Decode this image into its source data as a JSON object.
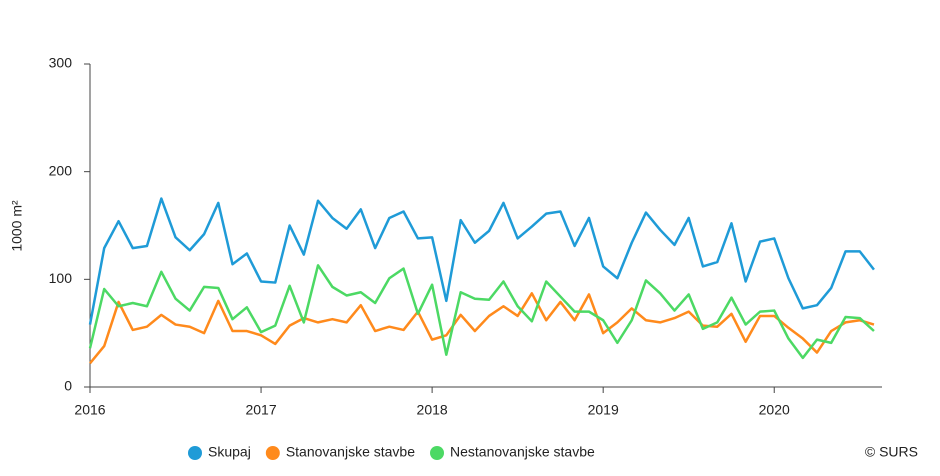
{
  "chart_data": {
    "type": "line",
    "y_label": "1000 m²",
    "credit": "© SURS",
    "x": [
      2016,
      2016.083,
      2016.167,
      2016.25,
      2016.333,
      2016.417,
      2016.5,
      2016.583,
      2016.667,
      2016.75,
      2016.833,
      2016.917,
      2017,
      2017.083,
      2017.167,
      2017.25,
      2017.333,
      2017.417,
      2017.5,
      2017.583,
      2017.667,
      2017.75,
      2017.833,
      2017.917,
      2018,
      2018.083,
      2018.167,
      2018.25,
      2018.333,
      2018.417,
      2018.5,
      2018.583,
      2018.667,
      2018.75,
      2018.833,
      2018.917,
      2019,
      2019.083,
      2019.167,
      2019.25,
      2019.333,
      2019.417,
      2019.5,
      2019.583,
      2019.667,
      2019.75,
      2019.833,
      2019.917,
      2020,
      2020.083,
      2020.167,
      2020.25,
      2020.333,
      2020.417,
      2020.5,
      2020.583
    ],
    "series": [
      {
        "name": "Skupaj",
        "color": "#1f9bd7",
        "values": [
          58,
          129,
          154,
          129,
          131,
          175,
          139,
          127,
          142,
          171,
          114,
          124,
          98,
          97,
          150,
          123,
          173,
          157,
          147,
          165,
          129,
          157,
          163,
          138,
          139,
          80,
          155,
          134,
          145,
          171,
          138,
          149,
          161,
          163,
          131,
          157,
          112,
          101,
          134,
          162,
          146,
          132,
          157,
          112,
          116,
          152,
          98,
          135,
          138,
          101,
          73,
          76,
          92,
          126,
          126,
          109
        ]
      },
      {
        "name": "Stanovanjske stavbe",
        "color": "#ff8a1c",
        "values": [
          22,
          38,
          79,
          53,
          56,
          67,
          58,
          56,
          50,
          80,
          52,
          52,
          48,
          40,
          57,
          64,
          60,
          63,
          60,
          76,
          52,
          56,
          53,
          70,
          44,
          48,
          67,
          52,
          66,
          75,
          66,
          87,
          62,
          79,
          62,
          86,
          50,
          60,
          73,
          62,
          60,
          64,
          70,
          57,
          56,
          68,
          42,
          66,
          66,
          55,
          45,
          32,
          52,
          60,
          62,
          58
        ]
      },
      {
        "name": "Nestanovanjske stavbe",
        "color": "#4cd964",
        "values": [
          36,
          91,
          75,
          78,
          75,
          107,
          82,
          71,
          93,
          92,
          63,
          74,
          51,
          57,
          94,
          60,
          113,
          93,
          85,
          88,
          78,
          101,
          110,
          68,
          95,
          30,
          88,
          82,
          81,
          98,
          75,
          61,
          98,
          84,
          70,
          70,
          62,
          41,
          62,
          99,
          87,
          71,
          86,
          54,
          60,
          83,
          58,
          70,
          71,
          45,
          27,
          44,
          41,
          65,
          64,
          52
        ]
      }
    ],
    "xlim": [
      2016,
      2020.63
    ],
    "xticks": [
      2016,
      2017,
      2018,
      2019,
      2020
    ],
    "ylim": [
      0,
      300
    ],
    "yticks": [
      0,
      100,
      200,
      300
    ],
    "grid": false,
    "legend": "bottom"
  }
}
